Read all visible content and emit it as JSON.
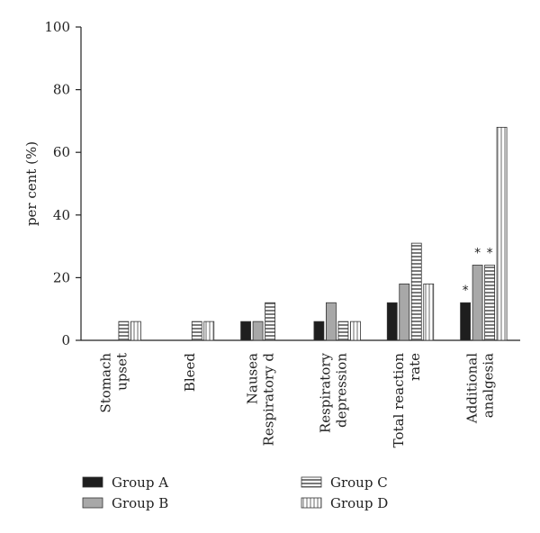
{
  "chart_data": {
    "type": "bar",
    "title": "",
    "xlabel": "",
    "ylabel": "per cent (%)",
    "ylim": [
      0,
      100
    ],
    "yticks": [
      0,
      20,
      40,
      60,
      80,
      100
    ],
    "grid": false,
    "legend_position": "bottom",
    "categories": [
      [
        "Stomach",
        "upset"
      ],
      [
        "Bleed"
      ],
      [
        "Nausea",
        "Respiratory d"
      ],
      [
        "Respiratory",
        "depression"
      ],
      [
        "Total reaction",
        "rate"
      ],
      [
        "Additional",
        "analgesia"
      ]
    ],
    "series": [
      {
        "name": "Group A",
        "color": "#1e1e1e",
        "pattern": "solid",
        "values": [
          0,
          0,
          6,
          6,
          12,
          12
        ],
        "annotations": [
          "",
          "",
          "",
          "",
          "",
          "*"
        ]
      },
      {
        "name": "Group B",
        "color": "#a8a8a8",
        "pattern": "solid",
        "values": [
          0,
          0,
          6,
          12,
          18,
          24
        ],
        "annotations": [
          "",
          "",
          "",
          "",
          "",
          "*"
        ]
      },
      {
        "name": "Group C",
        "color": "#8c8c8c",
        "pattern": "horizontal-stripes",
        "values": [
          6,
          6,
          12,
          6,
          31,
          24
        ],
        "annotations": [
          "",
          "",
          "",
          "",
          "",
          "*"
        ]
      },
      {
        "name": "Group D",
        "color": "#d6d6d6",
        "pattern": "vertical-stripes",
        "values": [
          6,
          6,
          0,
          6,
          18,
          68
        ],
        "annotations": [
          "",
          "",
          "",
          "",
          "",
          ""
        ]
      }
    ]
  }
}
